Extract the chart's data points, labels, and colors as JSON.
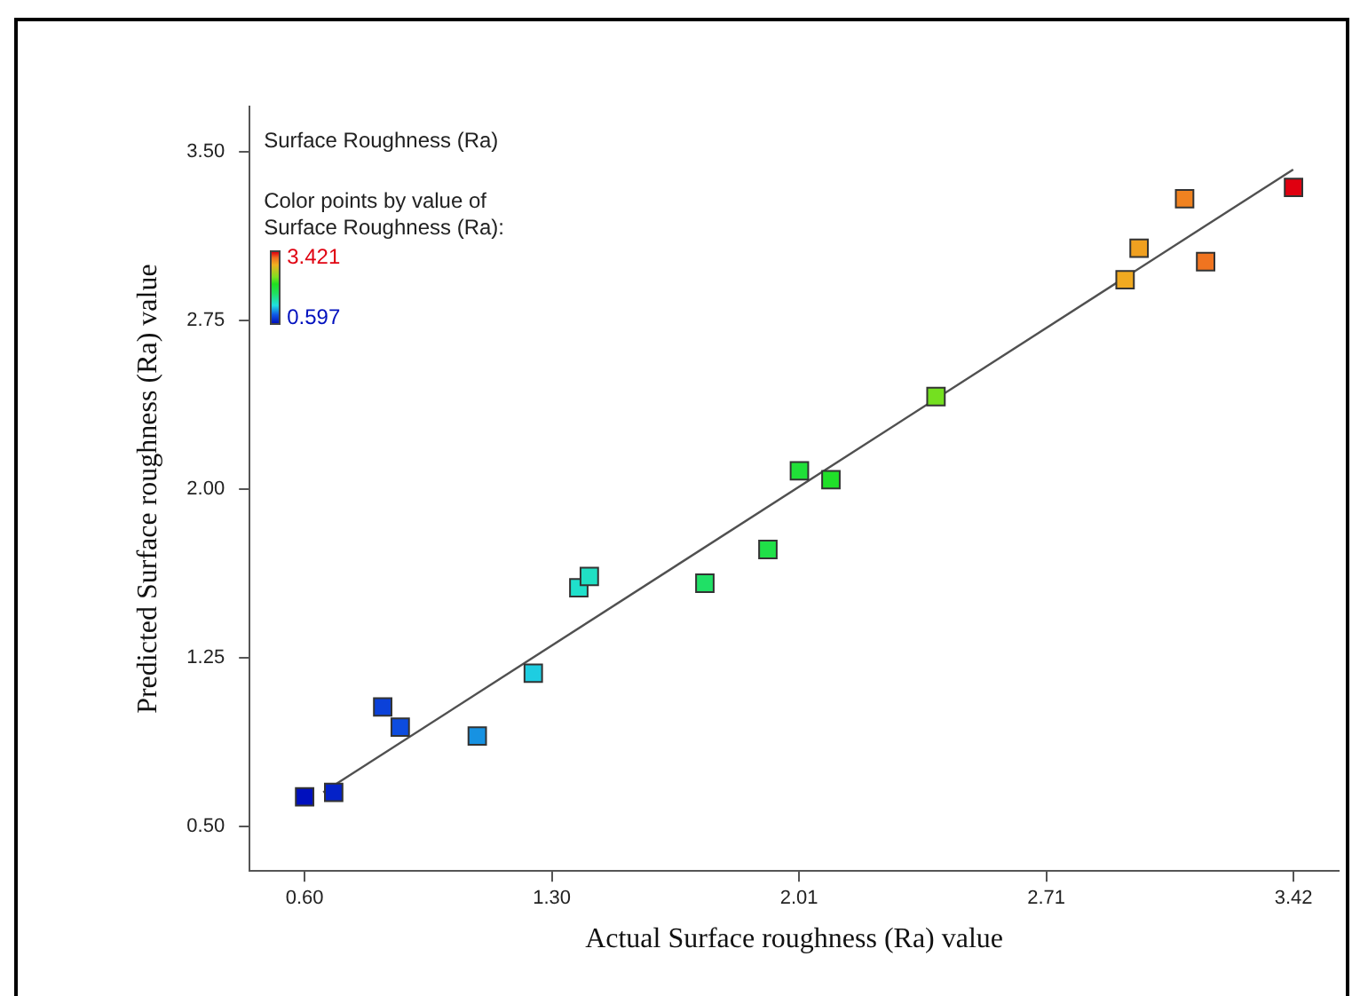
{
  "chart_data": {
    "type": "scatter",
    "title": "Surface Roughness (Ra)",
    "clabel": "Color points by value of Surface Roughness (Ra):",
    "xlabel": "Actual Surface roughness (Ra) value",
    "ylabel": "Predicted Surface roughness (Ra) value",
    "xlim": [
      0.44,
      3.55
    ],
    "ylim": [
      0.3,
      3.7
    ],
    "xticks": [
      {
        "value": 0.597,
        "label": "0.60"
      },
      {
        "value": 1.303,
        "label": "1.30"
      },
      {
        "value": 2.009,
        "label": "2.01"
      },
      {
        "value": 2.715,
        "label": "2.71"
      },
      {
        "value": 3.421,
        "label": "3.42"
      }
    ],
    "yticks": [
      {
        "value": 0.5,
        "label": "0.50"
      },
      {
        "value": 1.25,
        "label": "1.25"
      },
      {
        "value": 2.0,
        "label": "2.00"
      },
      {
        "value": 2.75,
        "label": "2.75"
      },
      {
        "value": 3.5,
        "label": "3.50"
      }
    ],
    "annotations": [
      "3.421",
      "0.597"
    ],
    "grid": false,
    "legend": false,
    "series": [
      {
        "marker": "square",
        "x": [
          0.597,
          0.68,
          0.82,
          0.87,
          1.09,
          1.25,
          1.38,
          1.41,
          1.74,
          1.92,
          2.01,
          2.1,
          2.4,
          2.94,
          2.98,
          3.11,
          3.17,
          3.421
        ],
        "values": [
          0.63,
          0.65,
          1.03,
          0.94,
          0.9,
          1.18,
          1.56,
          1.61,
          1.58,
          1.73,
          2.08,
          2.04,
          2.41,
          2.93,
          3.07,
          3.29,
          3.01,
          3.34
        ],
        "colors": [
          "#0010be",
          "#0422c8",
          "#0b41d9",
          "#0d4cdf",
          "#1792e2",
          "#1ecde1",
          "#20e0cb",
          "#20e0c4",
          "#20e066",
          "#20e048",
          "#20e038",
          "#20e029",
          "#74e020",
          "#f0a920",
          "#f0a020",
          "#f08220",
          "#f07420",
          "#e00010"
        ]
      },
      {
        "type": "line",
        "x": [
          0.65,
          3.42
        ],
        "values": [
          0.65,
          3.42
        ],
        "color": "#505050"
      }
    ]
  }
}
